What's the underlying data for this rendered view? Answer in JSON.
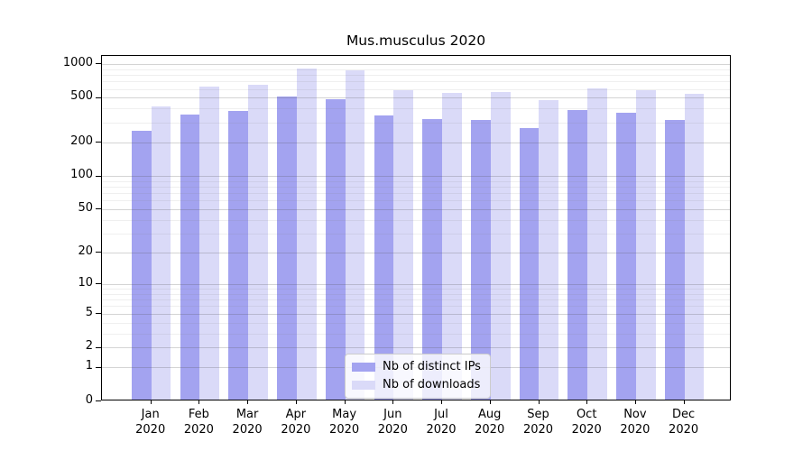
{
  "chart": {
    "title": "Mus.musculus 2020",
    "legend": {
      "items": [
        {
          "label": "Nb of distinct IPs",
          "color": "#a3a3f0"
        },
        {
          "label": "Nb of downloads",
          "color": "#dadaf8"
        }
      ],
      "position": "lower center"
    }
  },
  "chart_data": {
    "type": "bar",
    "title": "Mus.musculus 2020",
    "categories": [
      "Jan",
      "Feb",
      "Mar",
      "Apr",
      "May",
      "Jun",
      "Jul",
      "Aug",
      "Sep",
      "Oct",
      "Nov",
      "Dec"
    ],
    "category_year": "2020",
    "series": [
      {
        "name": "Nb of distinct IPs",
        "color": "#a3a3f0",
        "values": [
          245,
          345,
          370,
          500,
          475,
          340,
          315,
          310,
          260,
          375,
          360,
          310
        ]
      },
      {
        "name": "Nb of downloads",
        "color": "#dadaf8",
        "values": [
          405,
          610,
          630,
          880,
          850,
          570,
          535,
          545,
          465,
          590,
          565,
          525
        ]
      }
    ],
    "xlabel": "",
    "ylabel": "",
    "yscale": "log1p",
    "ylim": [
      0,
      1180
    ],
    "yticks": [
      0,
      1,
      2,
      5,
      10,
      20,
      50,
      100,
      200,
      500,
      1000
    ],
    "minor_yticks": [
      3,
      4,
      6,
      7,
      8,
      9,
      30,
      40,
      60,
      70,
      80,
      90,
      300,
      400,
      600,
      700,
      800,
      900
    ],
    "grid": true,
    "legend_position": "lower center"
  }
}
